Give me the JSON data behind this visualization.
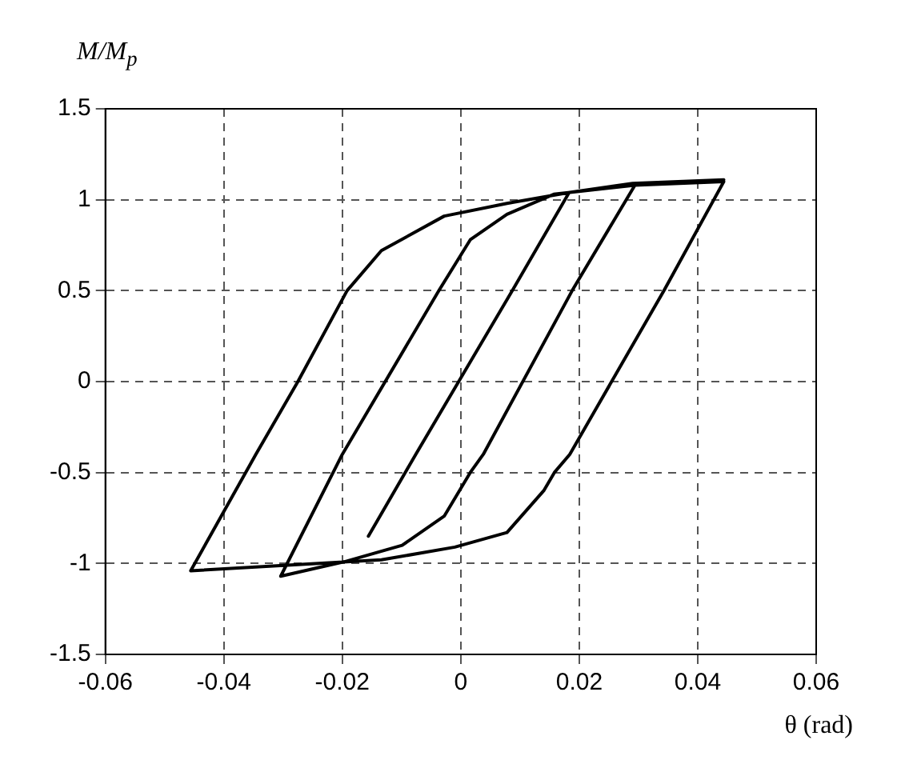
{
  "chart_data": {
    "type": "line",
    "xlabel": "θ (rad)",
    "ylabel": "M/M$_{p}$",
    "xlim": [
      -0.06,
      0.06
    ],
    "xticks": [
      -0.06,
      -0.04,
      -0.02,
      0,
      0.02,
      0.04,
      0.06
    ],
    "ylim": [
      -1.5,
      1.5
    ],
    "yticks": [
      -1.5,
      -1,
      -0.5,
      0,
      0.5,
      1,
      1.5
    ],
    "grid": true,
    "legend": false,
    "marker": "none",
    "line_style": "solid",
    "series": [
      {
        "color": "#000000",
        "x": [
          -0.0156,
          -0.0076,
          0.0087,
          0.0183,
          0.0294,
          0.0188,
          0.0038,
          0.0016,
          -0.0028,
          -0.0099,
          -0.0196,
          -0.0304,
          -0.02,
          -0.0037,
          0.0016,
          0.0078,
          0.0157,
          0.0294,
          0.0444,
          0.0343,
          0.0184,
          0.0158,
          0.014,
          0.0078,
          -0.001,
          -0.0134,
          -0.024,
          -0.0456,
          -0.0346,
          -0.0275,
          -0.0192,
          -0.0134,
          -0.0028,
          0.0078,
          0.0184,
          0.029,
          0.0444
        ],
        "values": [
          -0.85,
          -0.4,
          0.5,
          1.04,
          1.08,
          0.5,
          -0.4,
          -0.5,
          -0.74,
          -0.9,
          -0.99,
          -1.07,
          -0.4,
          0.5,
          0.78,
          0.92,
          1.03,
          1.08,
          1.1,
          0.5,
          -0.4,
          -0.5,
          -0.6,
          -0.83,
          -0.91,
          -0.98,
          -1.0,
          -1.04,
          -0.4,
          0,
          0.5,
          0.72,
          0.91,
          0.98,
          1.04,
          1.09,
          1.11
        ]
      }
    ]
  }
}
